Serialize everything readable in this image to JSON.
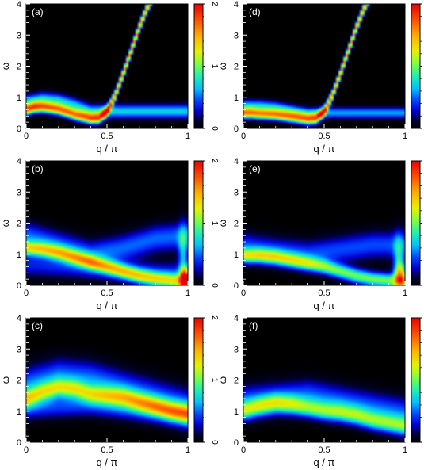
{
  "chart_data": [
    {
      "type": "heatmap",
      "panel": "(a)",
      "xlabel": "q / π",
      "ylabel": "ω",
      "xlim": [
        0,
        1
      ],
      "ylim": [
        0,
        4
      ],
      "xticks": [
        "0",
        "0.5",
        "1"
      ],
      "yticks": [
        "0",
        "1",
        "2",
        "3",
        "4"
      ],
      "colorbar": {
        "range": [
          0,
          2
        ],
        "ticks": [
          "0",
          "1",
          "2"
        ]
      },
      "features": [
        {
          "kind": "band",
          "intensity": 1.6,
          "width": 0.12,
          "q": [
            0,
            0.05,
            0.1,
            0.2,
            0.3,
            0.4,
            0.45,
            0.5,
            0.55,
            0.6,
            0.65,
            0.7,
            0.75,
            0.8
          ],
          "w": [
            0.6,
            0.68,
            0.7,
            0.62,
            0.45,
            0.32,
            0.33,
            0.55,
            1.05,
            1.75,
            2.5,
            3.25,
            3.9,
            4.4
          ]
        },
        {
          "kind": "band",
          "intensity": 0.7,
          "width": 0.15,
          "q": [
            0,
            0.1,
            0.2,
            0.3,
            0.4
          ],
          "w": [
            0.85,
            0.95,
            0.9,
            0.75,
            0.55
          ]
        }
      ]
    },
    {
      "type": "heatmap",
      "panel": "(b)",
      "xlabel": "q / π",
      "ylabel": "ω",
      "xlim": [
        0,
        1
      ],
      "ylim": [
        0,
        4
      ],
      "xticks": [
        "0",
        "0.5",
        "1"
      ],
      "yticks": [
        "0",
        "1",
        "2",
        "3",
        "4"
      ],
      "colorbar": {
        "range": [
          0,
          2
        ],
        "ticks": [
          "0",
          "1",
          "2"
        ]
      },
      "features": [
        {
          "kind": "band",
          "intensity": 1.1,
          "width": 0.16,
          "q": [
            0,
            0.1,
            0.2,
            0.3,
            0.4,
            0.5,
            0.6,
            0.7,
            0.8,
            0.9,
            1.0
          ],
          "w": [
            1.2,
            1.15,
            1.05,
            0.9,
            0.75,
            0.6,
            0.45,
            0.3,
            0.2,
            0.15,
            0.1
          ]
        },
        {
          "kind": "band",
          "intensity": 0.5,
          "width": 0.3,
          "q": [
            0,
            0.2,
            0.4,
            0.6,
            0.8,
            1.0
          ],
          "w": [
            1.6,
            1.3,
            1.0,
            1.2,
            1.5,
            1.6
          ]
        },
        {
          "kind": "band",
          "intensity": 0.35,
          "width": 0.25,
          "q": [
            0,
            0.2,
            0.4,
            0.6,
            0.8,
            1.0
          ],
          "w": [
            0.65,
            0.6,
            0.55,
            0.45,
            0.4,
            0.4
          ]
        },
        {
          "kind": "spot",
          "q": 0.98,
          "w": 0.2,
          "intensity": 1.5,
          "sq": 0.02,
          "sw": 0.25
        },
        {
          "kind": "spot",
          "q": 0.97,
          "w": 1.1,
          "intensity": 0.6,
          "sq": 0.02,
          "sw": 0.6
        }
      ]
    },
    {
      "type": "heatmap",
      "panel": "(c)",
      "xlabel": "q / π",
      "ylabel": "ω",
      "xlim": [
        0,
        1
      ],
      "ylim": [
        0,
        4
      ],
      "xticks": [
        "0",
        "0.5",
        "1"
      ],
      "yticks": [
        "0",
        "1",
        "2",
        "3",
        "4"
      ],
      "colorbar": {
        "range": [
          0,
          2
        ],
        "ticks": [
          "0",
          "1",
          "2"
        ]
      },
      "features": [
        {
          "kind": "band",
          "intensity": 0.9,
          "width": 0.2,
          "q": [
            0,
            0.1,
            0.2,
            0.3,
            0.4,
            0.5,
            0.6,
            0.7,
            0.8,
            0.9,
            1.0
          ],
          "w": [
            1.4,
            1.6,
            1.75,
            1.7,
            1.55,
            1.5,
            1.45,
            1.3,
            1.15,
            1.0,
            0.9
          ]
        },
        {
          "kind": "band",
          "intensity": 0.55,
          "width": 0.4,
          "q": [
            0,
            0.2,
            0.4,
            0.6,
            0.8,
            1.0
          ],
          "w": [
            1.8,
            2.1,
            2.0,
            1.7,
            1.4,
            1.1
          ]
        },
        {
          "kind": "band",
          "intensity": 0.4,
          "width": 0.25,
          "q": [
            0,
            0.2,
            0.4,
            0.6,
            0.8,
            1.0
          ],
          "w": [
            1.1,
            1.15,
            1.2,
            1.1,
            1.0,
            0.85
          ]
        }
      ]
    },
    {
      "type": "heatmap",
      "panel": "(d)",
      "xlabel": "q / π",
      "ylabel": "ω",
      "xlim": [
        0,
        1
      ],
      "ylim": [
        0,
        4
      ],
      "xticks": [
        "0",
        "0.5",
        "1"
      ],
      "yticks": [
        "0",
        "1",
        "2",
        "3",
        "4"
      ],
      "colorbar": {
        "range": [
          0,
          2
        ],
        "ticks": [
          "0",
          "1",
          "2"
        ]
      },
      "features": [
        {
          "kind": "band",
          "intensity": 1.6,
          "width": 0.12,
          "q": [
            0,
            0.05,
            0.1,
            0.2,
            0.3,
            0.4,
            0.45,
            0.5,
            0.55,
            0.6,
            0.65,
            0.7,
            0.75,
            0.8
          ],
          "w": [
            0.5,
            0.5,
            0.48,
            0.45,
            0.38,
            0.3,
            0.32,
            0.55,
            1.05,
            1.75,
            2.5,
            3.25,
            3.9,
            4.4
          ]
        },
        {
          "kind": "band",
          "intensity": 0.6,
          "width": 0.12,
          "q": [
            0,
            0.1,
            0.2,
            0.3,
            0.4
          ],
          "w": [
            0.75,
            0.75,
            0.7,
            0.6,
            0.5
          ]
        }
      ]
    },
    {
      "type": "heatmap",
      "panel": "(e)",
      "xlabel": "q / π",
      "ylabel": "ω",
      "xlim": [
        0,
        1
      ],
      "ylim": [
        0,
        4
      ],
      "xticks": [
        "0",
        "0.5",
        "1"
      ],
      "yticks": [
        "0",
        "1",
        "2",
        "3",
        "4"
      ],
      "colorbar": {
        "range": [
          0,
          2
        ],
        "ticks": [
          "0",
          "1",
          "2"
        ]
      },
      "features": [
        {
          "kind": "band",
          "intensity": 1.0,
          "width": 0.16,
          "q": [
            0,
            0.1,
            0.2,
            0.3,
            0.4,
            0.5,
            0.6,
            0.7,
            0.8,
            0.9,
            1.0
          ],
          "w": [
            0.95,
            0.95,
            0.9,
            0.8,
            0.7,
            0.6,
            0.45,
            0.3,
            0.2,
            0.15,
            0.1
          ]
        },
        {
          "kind": "band",
          "intensity": 0.45,
          "width": 0.3,
          "q": [
            0,
            0.2,
            0.4,
            0.6,
            0.8,
            1.0
          ],
          "w": [
            1.25,
            1.1,
            1.0,
            1.15,
            1.3,
            1.3
          ]
        },
        {
          "kind": "spot",
          "q": 0.97,
          "w": 0.35,
          "intensity": 1.2,
          "sq": 0.025,
          "sw": 0.3
        },
        {
          "kind": "spot",
          "q": 0.96,
          "w": 1.0,
          "intensity": 0.5,
          "sq": 0.02,
          "sw": 0.5
        }
      ]
    },
    {
      "type": "heatmap",
      "panel": "(f)",
      "xlabel": "q / π",
      "ylabel": "ω",
      "xlim": [
        0,
        1
      ],
      "ylim": [
        0,
        4
      ],
      "xticks": [
        "0",
        "0.5",
        "1"
      ],
      "yticks": [
        "0",
        "1",
        "2",
        "3",
        "4"
      ],
      "colorbar": {
        "range": [
          0,
          2
        ],
        "ticks": [
          "0",
          "1",
          "2"
        ]
      },
      "features": [
        {
          "kind": "band",
          "intensity": 0.85,
          "width": 0.2,
          "q": [
            0,
            0.1,
            0.2,
            0.3,
            0.4,
            0.5,
            0.6,
            0.7,
            0.8,
            0.9,
            1.0
          ],
          "w": [
            1.0,
            1.15,
            1.25,
            1.2,
            1.1,
            1.0,
            0.95,
            0.85,
            0.7,
            0.6,
            0.5
          ]
        },
        {
          "kind": "band",
          "intensity": 0.5,
          "width": 0.35,
          "q": [
            0,
            0.2,
            0.4,
            0.6,
            0.8,
            1.0
          ],
          "w": [
            1.3,
            1.4,
            1.5,
            1.3,
            1.1,
            0.9
          ]
        }
      ]
    }
  ]
}
